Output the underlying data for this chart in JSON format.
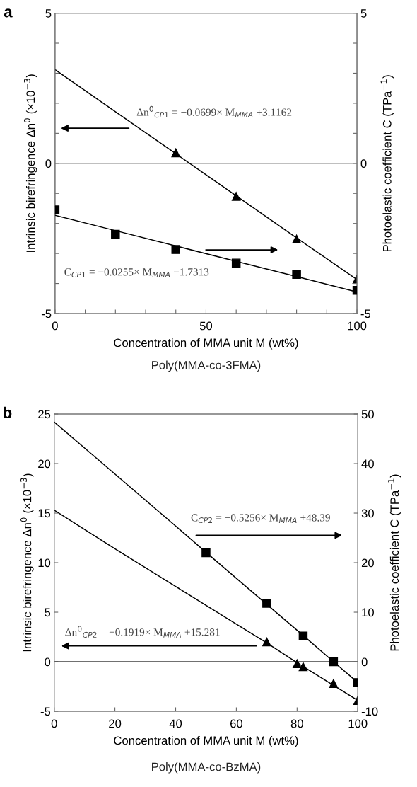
{
  "chart_data": [
    {
      "type": "scatter",
      "title": "a",
      "xlabel": "Concentration of MMA unit M (wt%)",
      "ylabel": "Intrinsic birefringence Δn$^{0}$ (×10$^{−3}$)",
      "y2label": "Photoelastic coefficient C (TPa$^{−1}$)",
      "annotations": [
        "Δn$^{0}$$_{CP1}$ = −0.0699× M$_{MMA}$ +3.1162",
        "C$_{CP1}$ = −0.0255× M$_{MMA}$ −1.7313",
        "Poly(MMA-co-3FMA)"
      ],
      "xlim": [
        0,
        100
      ],
      "xticks": [
        0,
        {
          "value": 10,
          "label": null
        },
        {
          "value": 20,
          "label": null
        },
        {
          "value": 30,
          "label": null
        },
        {
          "value": 40,
          "label": null
        },
        50,
        {
          "value": 60,
          "label": null
        },
        {
          "value": 70,
          "label": null
        },
        {
          "value": 80,
          "label": null
        },
        {
          "value": 90,
          "label": null
        },
        100
      ],
      "ylim": [
        -5,
        5
      ],
      "yticks": [
        -5,
        {
          "value": -4,
          "label": null
        },
        {
          "value": -3,
          "label": null
        },
        {
          "value": -2,
          "label": null
        },
        {
          "value": -1,
          "label": null
        },
        0,
        {
          "value": 1,
          "label": null
        },
        {
          "value": 2,
          "label": null
        },
        {
          "value": 3,
          "label": null
        },
        {
          "value": 4,
          "label": null
        },
        5
      ],
      "y2lim": [
        -5,
        5
      ],
      "y2ticks": [
        -5,
        {
          "value": -4,
          "label": null
        },
        {
          "value": -3,
          "label": null
        },
        {
          "value": -2,
          "label": null
        },
        {
          "value": -1,
          "label": null
        },
        0,
        {
          "value": 1,
          "label": null
        },
        {
          "value": 2,
          "label": null
        },
        {
          "value": 3,
          "label": null
        },
        {
          "value": 4,
          "label": null
        },
        5
      ],
      "ref_lines": [
        {
          "axis": "y",
          "value": 0,
          "color": "#808080"
        }
      ],
      "series": [
        {
          "marker": "triangle",
          "color": "#000000",
          "x": [
            40,
            60,
            80,
            100
          ],
          "values": [
            0.35,
            -1.1,
            -2.52,
            -3.86
          ]
        },
        {
          "type": "line",
          "marker": "none",
          "color": "#000000",
          "x": [
            0,
            20,
            40,
            60,
            80,
            100
          ],
          "values": [
            3.12,
            1.72,
            0.32,
            -1.08,
            -2.48,
            -3.87
          ]
        },
        {
          "marker": "square",
          "axis": "y2",
          "color": "#000000",
          "x": [
            0,
            20,
            40,
            60,
            80,
            100
          ],
          "values": [
            -1.55,
            -2.36,
            -2.87,
            -3.32,
            -3.7,
            -4.23
          ]
        },
        {
          "type": "line",
          "marker": "none",
          "axis": "y2",
          "color": "#000000",
          "x": [
            0,
            20,
            40,
            60,
            80,
            100
          ],
          "values": [
            -1.73,
            -2.24,
            -2.75,
            -3.26,
            -3.77,
            -4.28
          ]
        }
      ]
    },
    {
      "type": "scatter",
      "title": "b",
      "xlabel": "Concentration of MMA unit M (wt%)",
      "ylabel": "Intrinsic birefringence Δn$^{0}$ (×10$^{−3}$)",
      "y2label": "Photoelastic coefficient C (TPa$^{−1}$)",
      "annotations": [
        "C$_{CP2}$ = −0.5256× M$_{MMA}$ +48.39",
        "Δn$^{0}$$_{CP2}$ = −0.1919× M$_{MMA}$ +15.281",
        "Poly(MMA-co-BzMA)"
      ],
      "xlim": [
        0,
        100
      ],
      "xticks": [
        0,
        20,
        40,
        60,
        80,
        100
      ],
      "ylim": [
        -5,
        25
      ],
      "yticks": [
        -5,
        0,
        5,
        10,
        15,
        20,
        25
      ],
      "y2lim": [
        -10,
        50
      ],
      "y2ticks": [
        -10,
        0,
        10,
        20,
        30,
        40,
        50
      ],
      "ref_lines": [
        {
          "axis": "y",
          "value": 0,
          "color": "#404040"
        }
      ],
      "series": [
        {
          "marker": "triangle",
          "color": "#000000",
          "x": [
            70,
            80,
            82,
            92,
            100
          ],
          "values": [
            2.0,
            -0.2,
            -0.5,
            -2.2,
            -3.9
          ]
        },
        {
          "type": "line",
          "marker": "none",
          "color": "#000000",
          "x": [
            0,
            20,
            40,
            60,
            70,
            80,
            100
          ],
          "values": [
            15.3,
            11.4,
            7.6,
            3.8,
            1.9,
            -0.1,
            -3.9
          ]
        },
        {
          "marker": "square",
          "axis": "y2",
          "color": "#000000",
          "x": [
            50,
            70,
            82,
            92,
            100
          ],
          "values": [
            22.0,
            11.8,
            5.2,
            0.0,
            -4.2
          ]
        },
        {
          "type": "line",
          "marker": "none",
          "axis": "y2",
          "color": "#000000",
          "x": [
            0,
            20,
            40,
            50,
            70,
            82,
            92,
            100
          ],
          "values": [
            48.4,
            37.9,
            27.4,
            22.1,
            11.6,
            5.3,
            0.0,
            -4.2
          ]
        }
      ]
    }
  ]
}
